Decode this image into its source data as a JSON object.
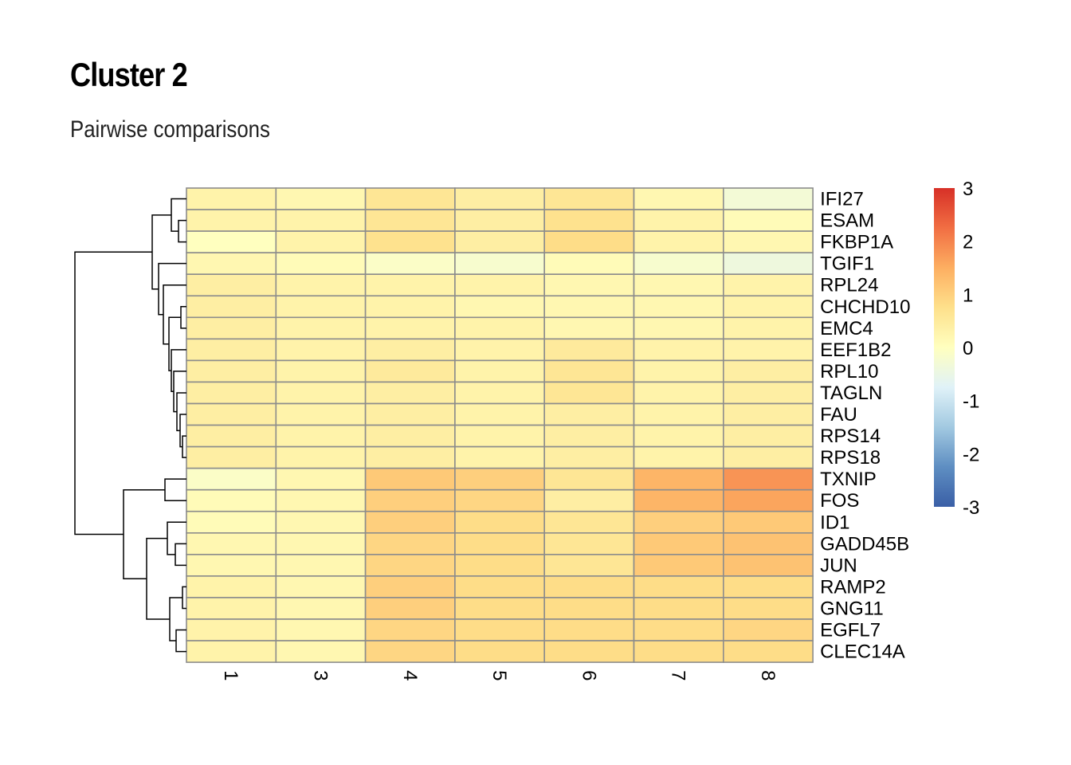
{
  "title": "Cluster 2",
  "subtitle": "Pairwise comparisons",
  "chart_data": {
    "type": "heatmap",
    "columns": [
      "1",
      "3",
      "4",
      "5",
      "6",
      "7",
      "8"
    ],
    "rows": [
      "IFI27",
      "ESAM",
      "FKBP1A",
      "TGIF1",
      "RPL24",
      "CHCHD10",
      "EMC4",
      "EEF1B2",
      "RPL10",
      "TAGLN",
      "FAU",
      "RPS14",
      "RPS18",
      "TXNIP",
      "FOS",
      "ID1",
      "GADD45B",
      "JUN",
      "RAMP2",
      "GNG11",
      "EGFL7",
      "CLEC14A"
    ],
    "values": [
      [
        0.3,
        0.2,
        0.6,
        0.4,
        0.6,
        0.2,
        -0.3
      ],
      [
        0.3,
        0.3,
        0.6,
        0.4,
        0.7,
        0.3,
        0.1
      ],
      [
        0.0,
        0.3,
        0.7,
        0.4,
        0.8,
        0.3,
        0.2
      ],
      [
        0.2,
        0.1,
        -0.1,
        -0.2,
        0.1,
        -0.2,
        -0.4
      ],
      [
        0.4,
        0.3,
        0.3,
        0.3,
        0.2,
        0.2,
        0.3
      ],
      [
        0.4,
        0.3,
        0.3,
        0.2,
        0.2,
        0.2,
        0.3
      ],
      [
        0.4,
        0.3,
        0.3,
        0.3,
        0.2,
        0.2,
        0.3
      ],
      [
        0.4,
        0.3,
        0.4,
        0.3,
        0.5,
        0.3,
        0.3
      ],
      [
        0.4,
        0.3,
        0.5,
        0.3,
        0.6,
        0.3,
        0.4
      ],
      [
        0.4,
        0.3,
        0.4,
        0.3,
        0.6,
        0.3,
        0.4
      ],
      [
        0.4,
        0.3,
        0.4,
        0.3,
        0.4,
        0.3,
        0.4
      ],
      [
        0.4,
        0.3,
        0.4,
        0.3,
        0.4,
        0.3,
        0.4
      ],
      [
        0.4,
        0.3,
        0.4,
        0.3,
        0.4,
        0.3,
        0.4
      ],
      [
        -0.1,
        0.2,
        1.1,
        1.0,
        0.6,
        1.4,
        1.8
      ],
      [
        0.1,
        0.2,
        1.0,
        0.9,
        0.4,
        1.4,
        1.6
      ],
      [
        0.1,
        0.2,
        1.0,
        0.8,
        0.6,
        1.0,
        1.1
      ],
      [
        0.2,
        0.2,
        0.9,
        0.8,
        0.6,
        1.1,
        1.2
      ],
      [
        0.2,
        0.2,
        0.9,
        0.8,
        0.6,
        1.1,
        1.2
      ],
      [
        0.3,
        0.2,
        1.0,
        0.8,
        0.8,
        0.8,
        0.8
      ],
      [
        0.3,
        0.2,
        1.0,
        0.8,
        0.8,
        0.8,
        0.8
      ],
      [
        0.3,
        0.2,
        0.9,
        0.8,
        0.8,
        0.8,
        0.9
      ],
      [
        0.3,
        0.2,
        0.9,
        0.8,
        0.8,
        0.8,
        0.8
      ]
    ],
    "color_scale": {
      "min": -3,
      "max": 3,
      "colors": [
        "#3A5FA6",
        "#5E8EC2",
        "#A2C9E1",
        "#E0F2F8",
        "#FFFFBF",
        "#FEE08B",
        "#FDAE61",
        "#F16E43",
        "#D73027"
      ]
    },
    "legend_ticks": [
      "3",
      "2",
      "1",
      "0",
      "-1",
      "-2",
      "-3"
    ],
    "row_dendrogram": true
  }
}
